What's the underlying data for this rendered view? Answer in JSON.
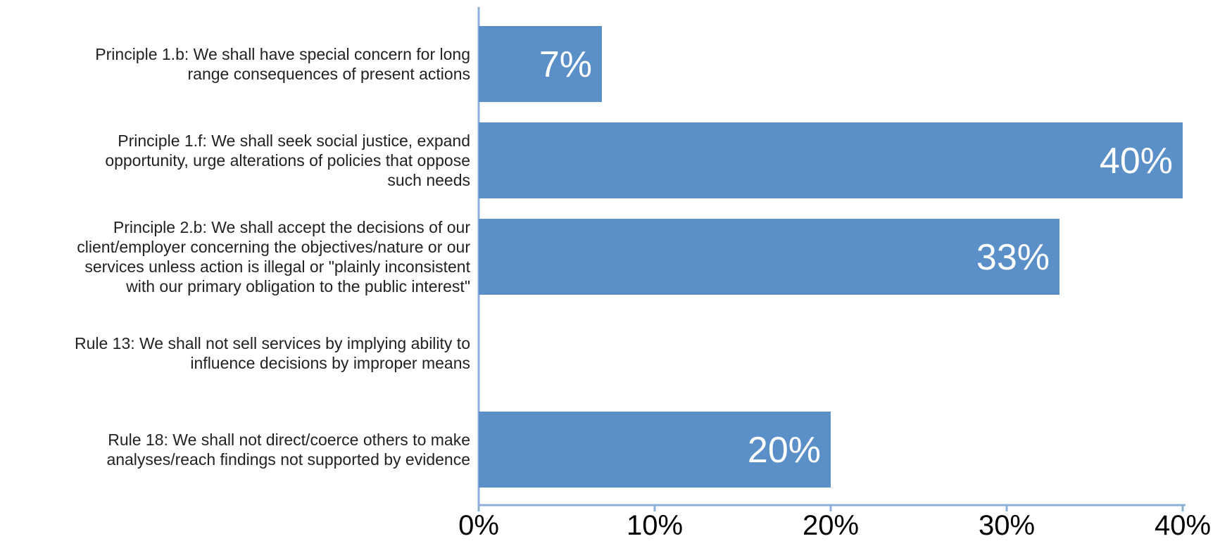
{
  "chart_data": {
    "type": "bar",
    "orientation": "horizontal",
    "categories": [
      "Principle 1.b: We shall have special concern for long\nrange consequences of present actions",
      "Principle 1.f: We shall seek social justice, expand\nopportunity, urge alterations of policies that oppose\nsuch needs",
      "Principle 2.b: We shall accept the decisions of our\nclient/employer concerning the objectives/nature or our\nservices unless action is illegal or \"plainly inconsistent\nwith our primary obligation to the public interest\"",
      "Rule 13: We shall not sell services by implying ability to\ninfluence decisions by improper means",
      "Rule 18: We shall not direct/coerce others to make\nanalyses/reach findings not supported by evidence"
    ],
    "values": [
      7,
      40,
      33,
      0,
      20
    ],
    "data_labels": [
      "7%",
      "40%",
      "33%",
      "",
      "20%"
    ],
    "xlim": [
      0,
      40
    ],
    "x_ticks": [
      0,
      10,
      20,
      30,
      40
    ],
    "x_tick_labels": [
      "0%",
      "10%",
      "20%",
      "30%",
      "40%"
    ],
    "bar_color": "#5b8fc7",
    "axis_color": "#8eb0d8",
    "grid": false,
    "legend": "none"
  }
}
